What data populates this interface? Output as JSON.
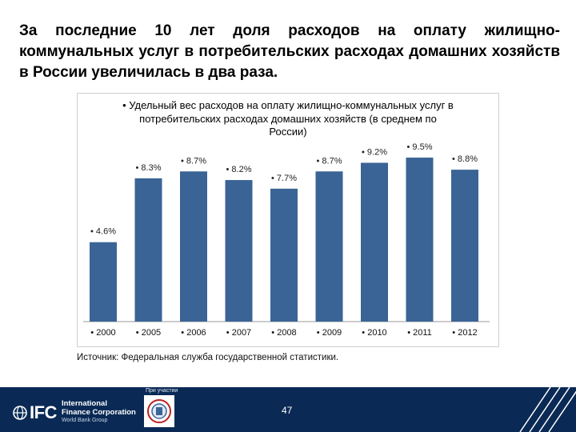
{
  "headline": "За последние 10 лет доля расходов на оплату жилищно-коммунальных услуг в потребительских расходах домашних хозяйств в России увеличилась в два раза.",
  "source": "Источник: Федеральная служба государственной статистики.",
  "footer": {
    "org_short": "IFC",
    "org_name_line1": "International",
    "org_name_line2": "Finance Corporation",
    "org_group": "World Bank Group",
    "partner_label": "При участии",
    "page_number": "47"
  },
  "colors": {
    "bar": "#3a6496",
    "footer_bg": "#0a2a55"
  },
  "chart_data": {
    "type": "bar",
    "title": "• Удельный вес расходов на оплату жилищно-коммунальных услуг в потребительских расходах домашних хозяйств (в среднем по России)",
    "categories": [
      "• 2000",
      "• 2005",
      "• 2006",
      "• 2007",
      "• 2008",
      "• 2009",
      "• 2010",
      "• 2011",
      "• 2012"
    ],
    "values": [
      4.6,
      8.3,
      8.7,
      8.2,
      7.7,
      8.7,
      9.2,
      9.5,
      8.8
    ],
    "data_labels": [
      "• 4.6%",
      "• 8.3%",
      "• 8.7%",
      "• 8.2%",
      "• 7.7%",
      "• 8.7%",
      "• 9.2%",
      "• 9.5%",
      "• 8.8%"
    ],
    "xlabel": "",
    "ylabel": "",
    "ylim": [
      0,
      10
    ],
    "grid": false,
    "legend": "none"
  }
}
